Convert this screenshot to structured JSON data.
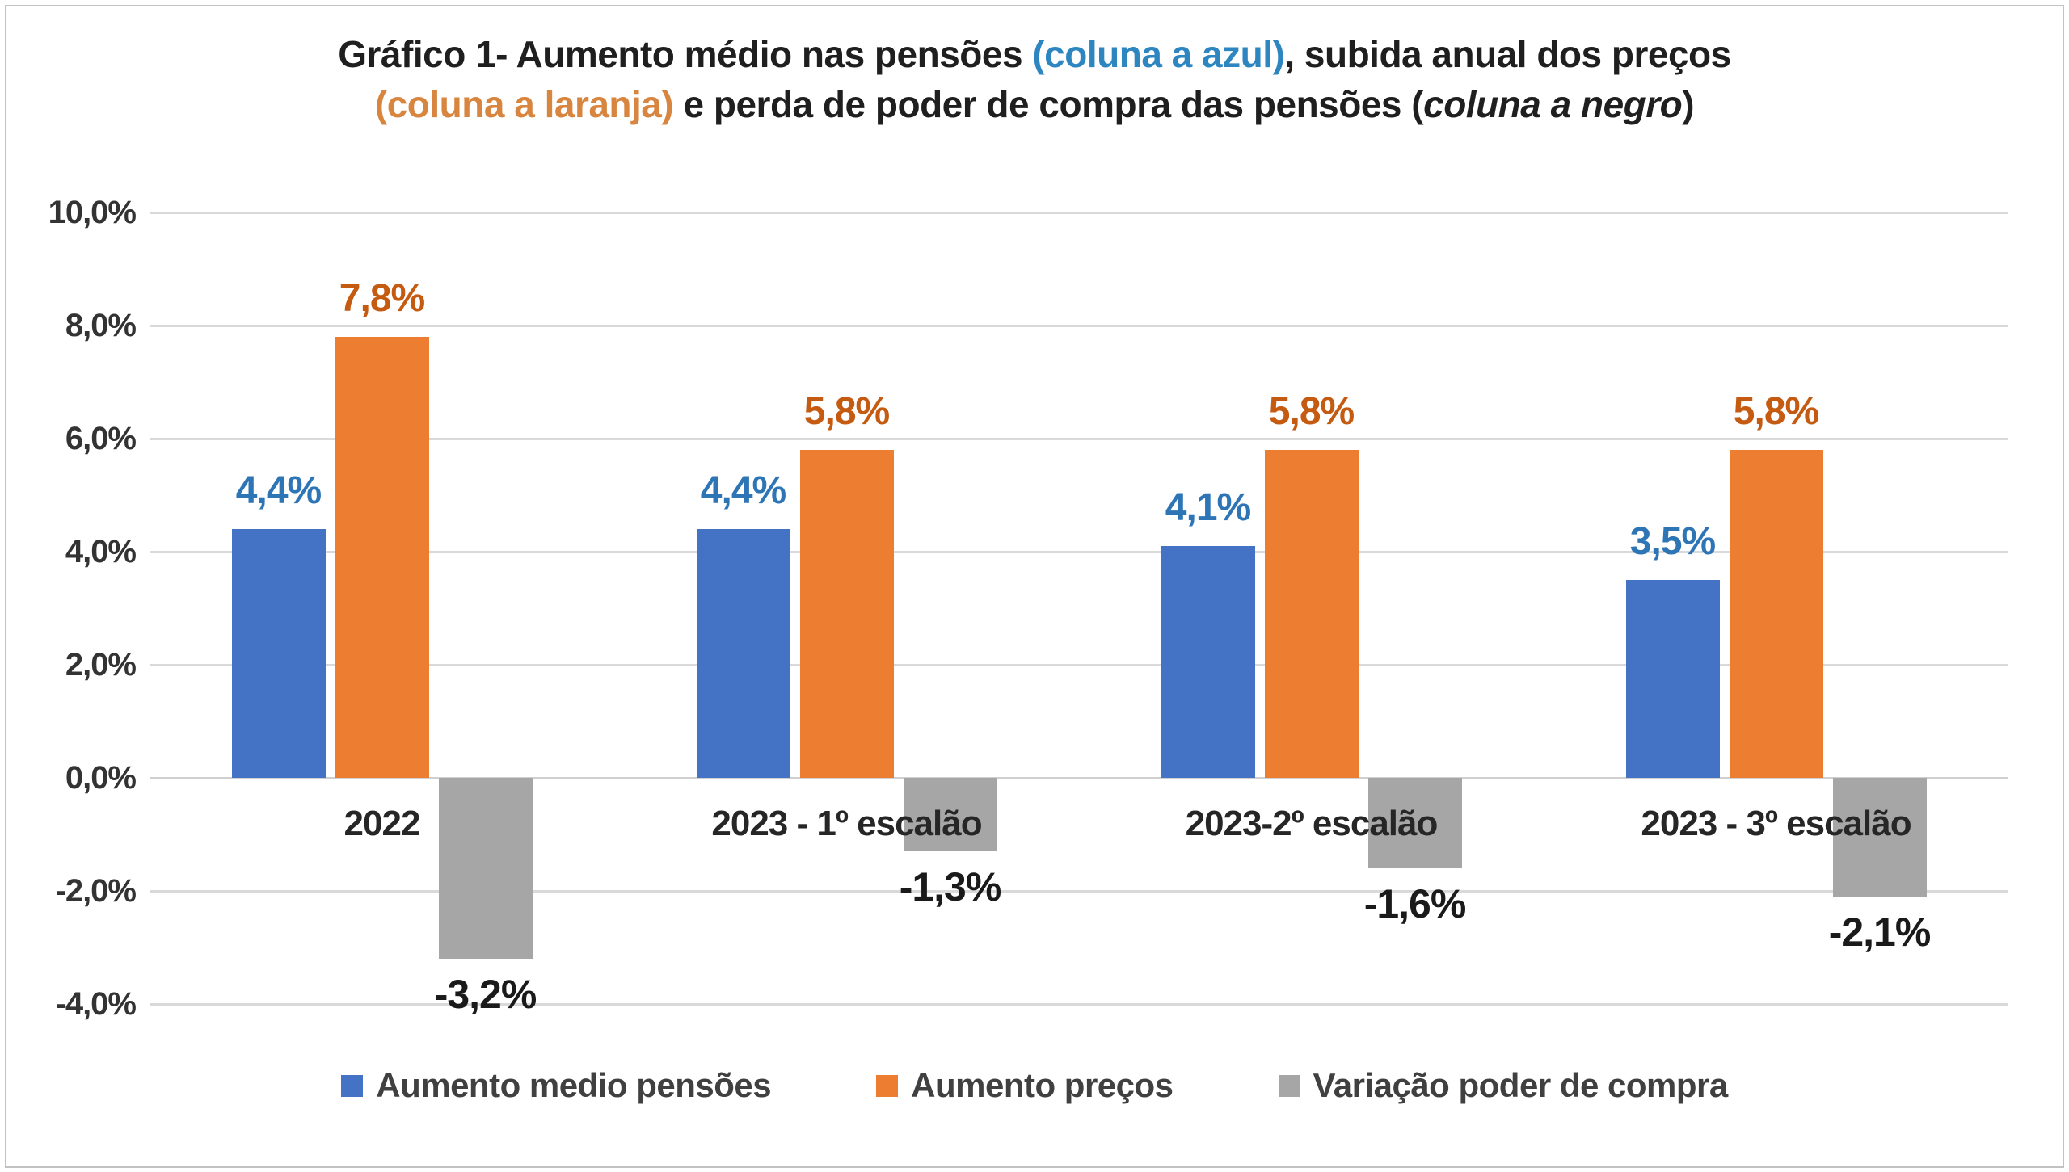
{
  "title": {
    "lines": [
      {
        "segments": [
          {
            "text": "Gráfico 1- Aumento médio nas pensões ",
            "style": "black"
          },
          {
            "text": "(coluna a azul)",
            "style": "blue"
          },
          {
            "text": ", subida anual dos preços",
            "style": "black"
          }
        ]
      },
      {
        "segments": [
          {
            "text": "(coluna a laranja)",
            "style": "orange"
          },
          {
            "text": " e perda de poder de compra das pensões (",
            "style": "black"
          },
          {
            "text": "coluna a negro",
            "style": "black-italic"
          },
          {
            "text": ")",
            "style": "black"
          }
        ]
      }
    ]
  },
  "chart_data": {
    "type": "bar",
    "title": "Gráfico 1- Aumento médio nas pensões (coluna a azul), subida anual dos preços (coluna a laranja) e perda de poder de compra das pensões (coluna a negro)",
    "categories": [
      "2022",
      "2023 - 1º escalão",
      "2023-2º escalão",
      "2023 - 3º escalão"
    ],
    "series": [
      {
        "name": "Aumento medio pensões",
        "color": "#4472C4",
        "label_color": "#2E75B6",
        "values": [
          4.4,
          4.4,
          4.1,
          3.5
        ],
        "labels": [
          "4,4%",
          "4,4%",
          "4,1%",
          "3,5%"
        ]
      },
      {
        "name": "Aumento preços",
        "color": "#ED7D31",
        "label_color": "#C55A11",
        "values": [
          7.8,
          5.8,
          5.8,
          5.8
        ],
        "labels": [
          "7,8%",
          "5,8%",
          "5,8%",
          "5,8%"
        ]
      },
      {
        "name": "Variação poder de compra",
        "color": "#A6A6A6",
        "label_color": "#1A1A1A",
        "values": [
          -3.2,
          -1.3,
          -1.6,
          -2.1
        ],
        "labels": [
          "-3,2%",
          "-1,3%",
          "-1,6%",
          "-2,1%"
        ]
      }
    ],
    "ylim": [
      -4,
      10
    ],
    "yticks": [
      {
        "value": 10,
        "label": "10,0%"
      },
      {
        "value": 8,
        "label": "8,0%"
      },
      {
        "value": 6,
        "label": "6,0%"
      },
      {
        "value": 4,
        "label": "4,0%"
      },
      {
        "value": 2,
        "label": "2,0%"
      },
      {
        "value": 0,
        "label": "0,0%"
      },
      {
        "value": -2,
        "label": "-2,0%"
      },
      {
        "value": -4,
        "label": "-4,0%"
      }
    ],
    "grid": true,
    "legend_position": "bottom"
  }
}
